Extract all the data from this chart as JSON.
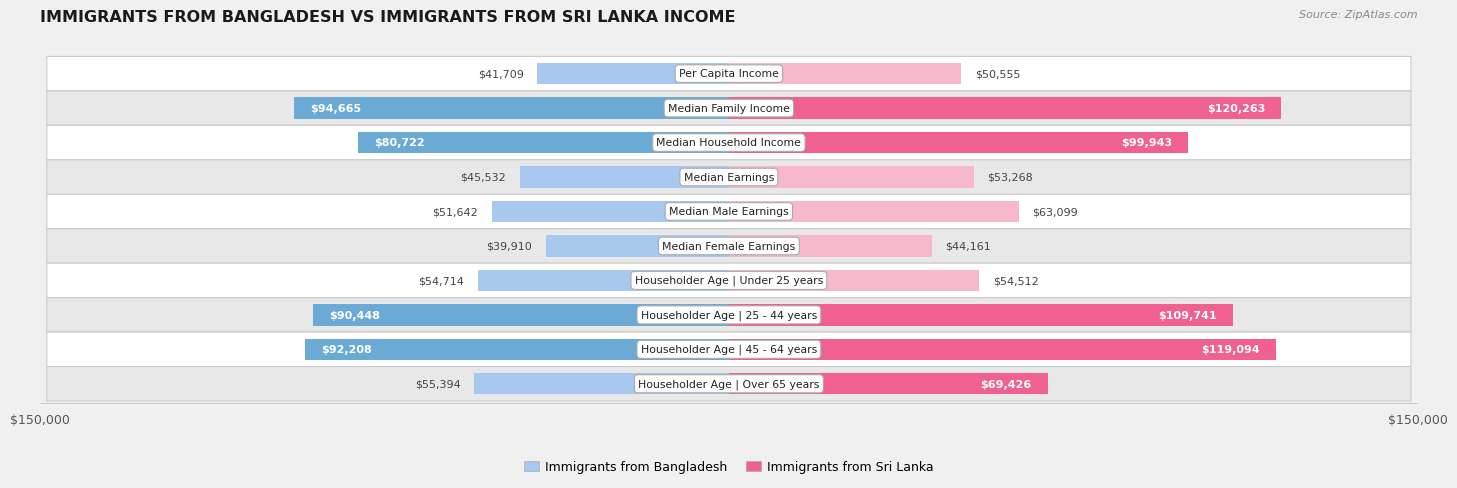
{
  "title": "IMMIGRANTS FROM BANGLADESH VS IMMIGRANTS FROM SRI LANKA INCOME",
  "source": "Source: ZipAtlas.com",
  "categories": [
    "Per Capita Income",
    "Median Family Income",
    "Median Household Income",
    "Median Earnings",
    "Median Male Earnings",
    "Median Female Earnings",
    "Householder Age | Under 25 years",
    "Householder Age | 25 - 44 years",
    "Householder Age | 45 - 64 years",
    "Householder Age | Over 65 years"
  ],
  "bangladesh_values": [
    41709,
    94665,
    80722,
    45532,
    51642,
    39910,
    54714,
    90448,
    92208,
    55394
  ],
  "srilanka_values": [
    50555,
    120263,
    99943,
    53268,
    63099,
    44161,
    54512,
    109741,
    119094,
    69426
  ],
  "bangladesh_labels": [
    "$41,709",
    "$94,665",
    "$80,722",
    "$45,532",
    "$51,642",
    "$39,910",
    "$54,714",
    "$90,448",
    "$92,208",
    "$55,394"
  ],
  "srilanka_labels": [
    "$50,555",
    "$120,263",
    "$99,943",
    "$53,268",
    "$63,099",
    "$44,161",
    "$54,512",
    "$109,741",
    "$119,094",
    "$69,426"
  ],
  "bangladesh_color_light": "#a8c8f0",
  "bangladesh_color_dark": "#6aaad4",
  "srilanka_color_light": "#f8b8cc",
  "srilanka_color_dark": "#f06090",
  "max_value": 150000,
  "background_color": "#f0f0f0",
  "row_even_color": "#ffffff",
  "row_odd_color": "#e8e8e8",
  "legend_bangladesh": "Immigrants from Bangladesh",
  "legend_srilanka": "Immigrants from Sri Lanka",
  "inside_threshold": 67000,
  "bar_height": 0.62
}
